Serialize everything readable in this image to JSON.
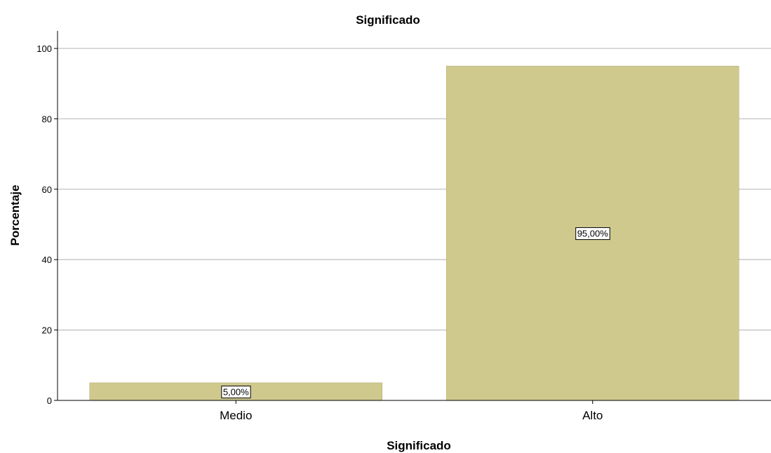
{
  "chart_data": {
    "type": "bar",
    "title": "Significado",
    "xlabel": "Significado",
    "ylabel": "Porcentaje",
    "categories": [
      "Medio",
      "Alto"
    ],
    "values": [
      5.0,
      95.0
    ],
    "data_labels": [
      "5,00%",
      "95,00%"
    ],
    "yticks": [
      "0",
      "20",
      "40",
      "60",
      "80",
      "100"
    ],
    "ylim": [
      0,
      105
    ],
    "grid": true,
    "colors": {
      "bar_fill": "#d0c98e",
      "bar_stroke": "#b5ae77",
      "grid": "#c8c8c8",
      "axis": "#000000"
    }
  }
}
